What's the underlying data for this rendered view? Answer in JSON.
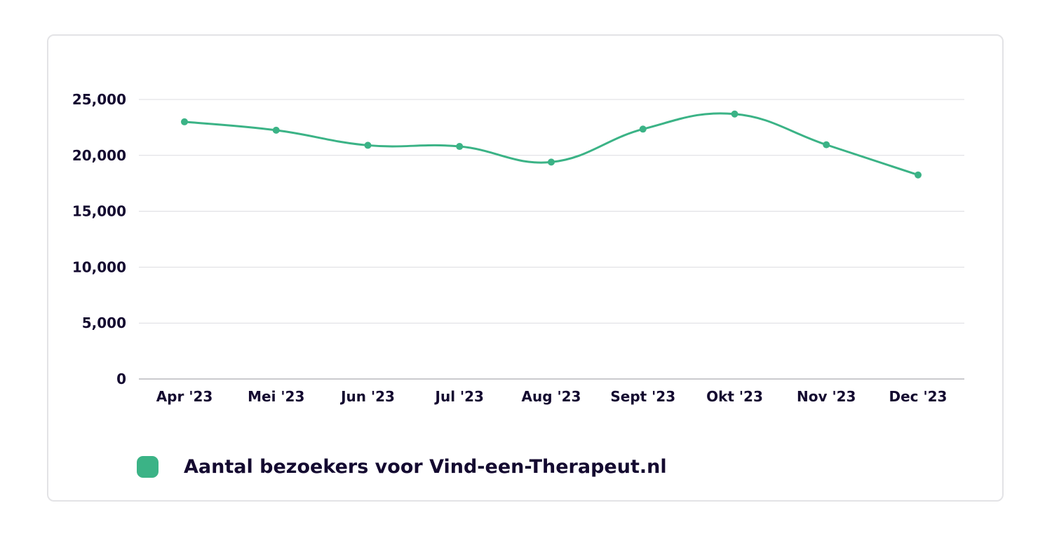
{
  "colors": {
    "series": "#3bb386",
    "grid": "#dcdce0",
    "axis": "#b8b8be",
    "text": "#140a30",
    "card_border": "#e3e3e6"
  },
  "legend": {
    "label": "Aantal bezoekers voor Vind-een-Therapeut.nl"
  },
  "chart_data": {
    "type": "line",
    "categories": [
      "Apr '23",
      "Mei '23",
      "Jun '23",
      "Jul '23",
      "Aug '23",
      "Sept '23",
      "Okt '23",
      "Nov '23",
      "Dec '23"
    ],
    "series": [
      {
        "name": "Aantal bezoekers voor Vind-een-Therapeut.nl",
        "values": [
          23000,
          22250,
          20900,
          20800,
          19400,
          22350,
          23700,
          20950,
          18250
        ]
      }
    ],
    "y_ticks": [
      "0",
      "5,000",
      "10,000",
      "15,000",
      "20,000",
      "25,000"
    ],
    "ylim": [
      0,
      25000
    ],
    "grid": true,
    "legend_position": "bottom-left"
  }
}
